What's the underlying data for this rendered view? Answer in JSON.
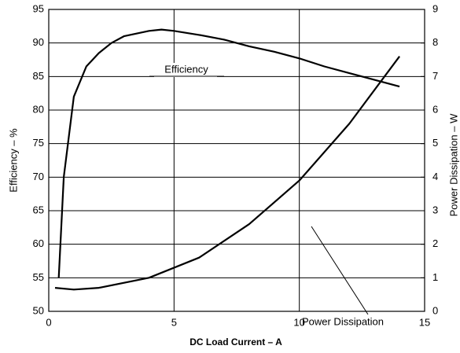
{
  "chart_data": {
    "type": "line",
    "xlabel": "DC Load Current – A",
    "ylabel": "Efficiency – %",
    "y2label": "Power Dissipation – W",
    "annotations": [
      "Efficiency",
      "Power Dissipation"
    ],
    "xlim": [
      0,
      15
    ],
    "xticks": [
      0,
      5,
      10,
      15
    ],
    "ylim": [
      50,
      95
    ],
    "yticks": [
      50,
      55,
      60,
      65,
      70,
      75,
      80,
      85,
      90,
      95
    ],
    "y2lim": [
      0,
      9
    ],
    "y2ticks": [
      0,
      1,
      2,
      3,
      4,
      5,
      6,
      7,
      8,
      9
    ],
    "grid": true,
    "series": [
      {
        "name": "Efficiency",
        "color": "#000000",
        "x": [
          0.4,
          0.6,
          0.8,
          1,
          1.5,
          2,
          2.5,
          3,
          4,
          4.5,
          5,
          6,
          7,
          8,
          9,
          10,
          11,
          12,
          13,
          14
        ],
        "values": [
          55,
          70,
          76,
          82,
          86.5,
          88.5,
          90,
          91,
          91.8,
          92,
          91.8,
          91.2,
          90.5,
          89.5,
          88.7,
          87.7,
          86.5,
          85.5,
          84.5,
          83.5
        ]
      },
      {
        "name": "Power Dissipation",
        "color": "#000000",
        "axis": "y2",
        "x": [
          0.25,
          1,
          2,
          4,
          6,
          8,
          10,
          12,
          14
        ],
        "values": [
          0.7,
          0.65,
          0.7,
          1.0,
          1.6,
          2.6,
          3.9,
          5.6,
          7.6
        ]
      }
    ]
  }
}
